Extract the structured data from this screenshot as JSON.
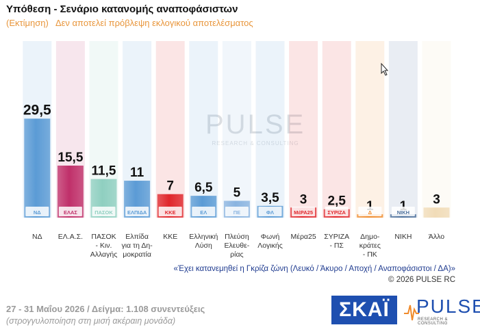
{
  "title": "Υπόθεση - Σενάριο κατανομής αναποφάσιστων",
  "subtitle": "(Εκτίμηση)   Δεν αποτελεί πρόβλεψη εκλογικού αποτελέσματος",
  "watermark": {
    "main": "PULSE",
    "sub": "RESEARCH & CONSULTING"
  },
  "footnote": "«Έχει κατανεμηθεί η Γκρίζα ζώνη (Λευκό / Άκυρο / Αποχή / Αναποφάσιστοι / ΔΑ)»",
  "copyright": "©  2026  PULSE RC",
  "sample_info": "27 - 31  Μαΐου 2026  /  Δείγμα:  1.108 συνεντεύξεις",
  "rounding_note": "(στρογγυλοποίηση στη μισή ακέραιη μονάδα)",
  "logos": {
    "skai": "ΣΚΑΪ",
    "pulse": "PULSE",
    "pulse_sub": "RESEARCH & CONSULTING"
  },
  "chart_data": {
    "type": "bar",
    "title": "Υπόθεση - Σενάριο κατανομής αναποφάσιστων",
    "categories": [
      "ΝΔ",
      "ΕΛ.Α.Σ.",
      "ΠΑΣΟΚ - Κιν. Αλλαγής",
      "Ελπίδα για τη Δημοκρατία",
      "ΚΚΕ",
      "Ελληνική Λύση",
      "Πλεύση Ελευθερίας",
      "Φωνή Λογικής",
      "Μέρα25",
      "ΣΥΡΙΖΑ - ΠΣ",
      "Δημοκράτες - ΠΚ",
      "ΝΙΚΗ",
      "Άλλο"
    ],
    "tick_labels": [
      [
        "ΝΔ"
      ],
      [
        "ΕΛ.Α.Σ."
      ],
      [
        "ΠΑΣΟΚ",
        "- Κιν.",
        "Αλλαγής"
      ],
      [
        "Ελπίδα",
        "για τη Δη-",
        "μοκρατία"
      ],
      [
        "ΚΚΕ"
      ],
      [
        "Ελληνική",
        "Λύση"
      ],
      [
        "Πλεύση",
        "Ελευθε-",
        "ρίας"
      ],
      [
        "Φωνή",
        "Λογικής"
      ],
      [
        "Μέρα25"
      ],
      [
        "ΣΥΡΙΖΑ",
        "- ΠΣ"
      ],
      [
        "Δημο-",
        "κράτες",
        "- ΠΚ"
      ],
      [
        "ΝΙΚΗ"
      ],
      [
        "Άλλο"
      ]
    ],
    "values": [
      29.5,
      15.5,
      11.5,
      11,
      7,
      6.5,
      5,
      3.5,
      3,
      2.5,
      1,
      1,
      3
    ],
    "value_labels": [
      "29,5",
      "15,5",
      "11,5",
      "11",
      "7",
      "6,5",
      "5",
      "3,5",
      "3",
      "2,5",
      "1",
      "1",
      "3"
    ],
    "colors": [
      "#5b9bd5",
      "#c0306a",
      "#8fcfc0",
      "#5b9bd5",
      "#e0262b",
      "#5b9bd5",
      "#8ab4e0",
      "#5b9bd5",
      "#e0262b",
      "#e0262b",
      "#f08a2a",
      "#4a6e9a",
      "#f1dcb8"
    ],
    "logo_marks": [
      "ΝΔ",
      "ΕΛΑΣ",
      "ΠΑΣΟΚ",
      "ΕΛΠΙΔΑ",
      "ΚΚΕ",
      "ΕΛ",
      "ΠΕ",
      "ΦΛ",
      "ΜέΡΑ25",
      "ΣΥΡΙΖΑ",
      "Δ",
      "ΝΙΚΗ",
      ""
    ],
    "ylim": [
      0,
      31
    ],
    "grid": false,
    "legend": "none"
  }
}
